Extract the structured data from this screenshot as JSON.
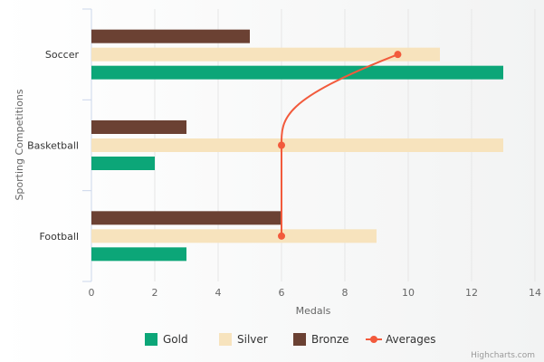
{
  "chart_data": {
    "type": "bar",
    "orientation": "horizontal",
    "categories": [
      "Soccer",
      "Basketball",
      "Football"
    ],
    "series": [
      {
        "name": "Gold",
        "color": "#0ca678",
        "values": [
          13,
          2,
          3
        ]
      },
      {
        "name": "Silver",
        "color": "#f7e3bd",
        "values": [
          11,
          13,
          9
        ]
      },
      {
        "name": "Bronze",
        "color": "#6b4133",
        "values": [
          5,
          3,
          6
        ]
      }
    ],
    "line_series": {
      "name": "Averages",
      "color": "#f25a3c",
      "values": [
        9.67,
        6,
        6
      ]
    },
    "xlabel": "Medals",
    "ylabel": "Sporting Competitions",
    "xlim": [
      0,
      14
    ],
    "xticks": [
      0,
      2,
      4,
      6,
      8,
      10,
      12,
      14
    ],
    "grid": true,
    "legend": "bottom-center"
  },
  "credits": "Highcharts.com"
}
